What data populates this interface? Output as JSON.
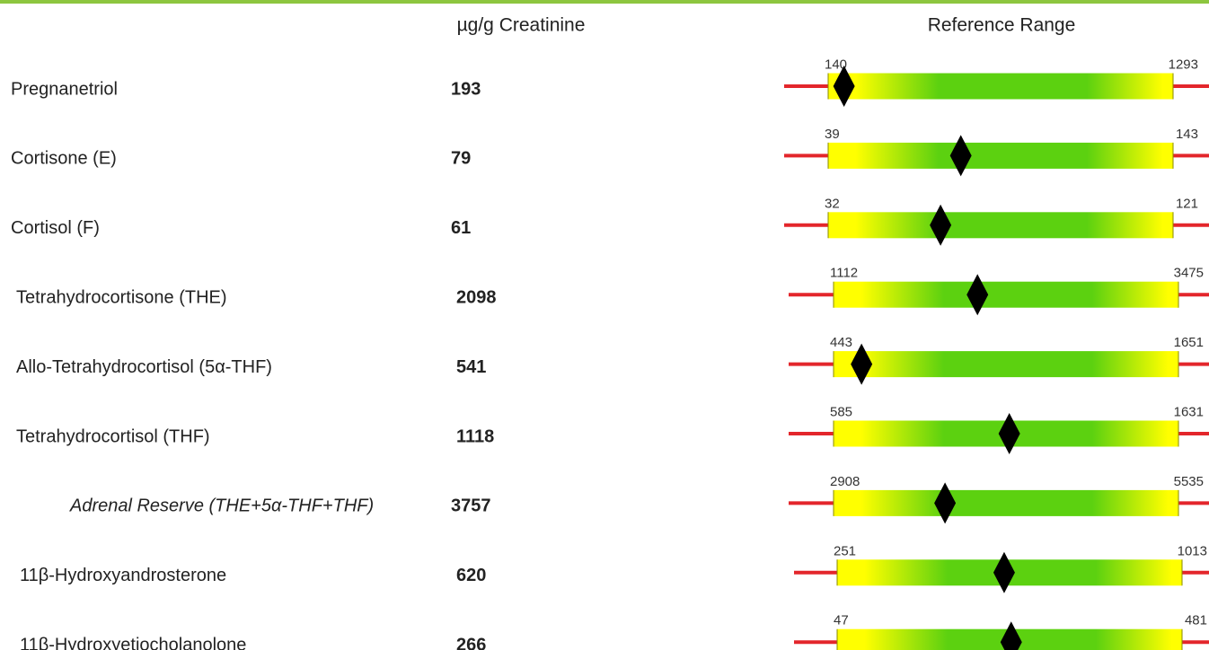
{
  "header": {
    "value_column": "µg/g Creatinine",
    "range_column": "Reference Range"
  },
  "rows": [
    {
      "name": "Pregnanetriol",
      "value": 193,
      "low": 140,
      "high": 1293
    },
    {
      "name": "Cortisone (E)",
      "value": 79,
      "low": 39,
      "high": 143
    },
    {
      "name": "Cortisol (F)",
      "value": 61,
      "low": 32,
      "high": 121
    },
    {
      "name": "Tetrahydrocortisone (THE)",
      "value": 2098,
      "low": 1112,
      "high": 3475
    },
    {
      "name": "Allo-Tetrahydrocortisol (5α-THF)",
      "value": 541,
      "low": 443,
      "high": 1651
    },
    {
      "name": "Tetrahydrocortisol (THF)",
      "value": 1118,
      "low": 585,
      "high": 1631
    },
    {
      "name": "Adrenal Reserve (THE+5α-THF+THF)",
      "value": 3757,
      "low": 2908,
      "high": 5535
    },
    {
      "name": "11β-Hydroxyandrosterone",
      "value": 620,
      "low": 251,
      "high": 1013
    },
    {
      "name": "11β-Hydroxyetiocholanolone",
      "value": 266,
      "low": 47,
      "high": 481
    }
  ]
}
